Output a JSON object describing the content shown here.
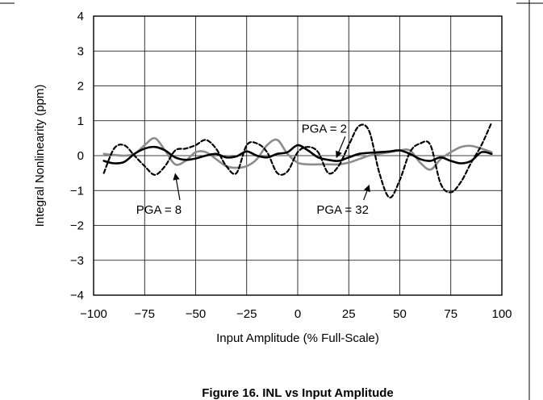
{
  "chart_data": {
    "type": "line",
    "title": "",
    "caption": "Figure 16. INL vs Input Amplitude",
    "xlabel": "Input Amplitude (% Full-Scale)",
    "ylabel": "Integral Nonlinearity (ppm)",
    "xlim": [
      -100,
      100
    ],
    "ylim": [
      -4,
      4
    ],
    "x_ticks": [
      -100,
      -75,
      -50,
      -25,
      0,
      25,
      50,
      75,
      100
    ],
    "y_ticks": [
      -4,
      -3,
      -2,
      -1,
      0,
      1,
      2,
      3,
      4
    ],
    "x_tick_labels": [
      "−100",
      "−75",
      "−50",
      "−25",
      "0",
      "25",
      "50",
      "75",
      "100"
    ],
    "y_tick_labels": [
      "−4",
      "−3",
      "−2",
      "−1",
      "0",
      "1",
      "2",
      "3",
      "4"
    ],
    "grid": true,
    "series": [
      {
        "name": "PGA = 2",
        "color": "#000000",
        "style": "solid",
        "x": [
          -95,
          -90,
          -85,
          -80,
          -75,
          -70,
          -65,
          -60,
          -55,
          -50,
          -45,
          -40,
          -35,
          -30,
          -25,
          -20,
          -15,
          -10,
          -5,
          0,
          5,
          10,
          15,
          20,
          25,
          30,
          35,
          40,
          45,
          50,
          55,
          60,
          65,
          70,
          75,
          80,
          85,
          90,
          95
        ],
        "y": [
          -0.15,
          -0.22,
          -0.18,
          0.05,
          0.2,
          0.25,
          0.15,
          -0.05,
          -0.12,
          -0.08,
          0.0,
          0.05,
          -0.05,
          -0.02,
          0.12,
          0.0,
          -0.05,
          0.05,
          0.1,
          0.3,
          0.15,
          -0.05,
          -0.12,
          -0.15,
          -0.05,
          0.05,
          0.08,
          0.1,
          0.12,
          0.15,
          0.05,
          -0.1,
          -0.15,
          -0.05,
          -0.15,
          -0.22,
          -0.15,
          0.1,
          0.05
        ]
      },
      {
        "name": "PGA = 8",
        "color": "#8c8c8c",
        "style": "solid",
        "x": [
          -95,
          -90,
          -85,
          -80,
          -75,
          -70,
          -65,
          -60,
          -55,
          -50,
          -45,
          -40,
          -35,
          -30,
          -25,
          -20,
          -15,
          -10,
          -5,
          0,
          5,
          10,
          15,
          20,
          25,
          30,
          35,
          40,
          45,
          50,
          55,
          60,
          65,
          70,
          75,
          80,
          85,
          90,
          95
        ],
        "y": [
          0.05,
          0.02,
          0.0,
          0.05,
          0.3,
          0.5,
          0.15,
          -0.25,
          -0.15,
          0.1,
          0.1,
          -0.1,
          -0.3,
          -0.35,
          -0.3,
          -0.1,
          0.3,
          0.45,
          0.05,
          -0.2,
          -0.25,
          -0.25,
          -0.25,
          -0.25,
          -0.2,
          -0.1,
          0.0,
          0.05,
          0.1,
          0.15,
          0.15,
          -0.2,
          -0.4,
          -0.1,
          0.1,
          0.25,
          0.28,
          0.2,
          0.1
        ]
      },
      {
        "name": "PGA = 32",
        "color": "#000000",
        "style": "dashed",
        "x": [
          -95,
          -90,
          -85,
          -80,
          -75,
          -70,
          -65,
          -60,
          -55,
          -50,
          -45,
          -40,
          -35,
          -30,
          -25,
          -20,
          -15,
          -10,
          -5,
          0,
          5,
          10,
          15,
          20,
          25,
          30,
          35,
          40,
          45,
          50,
          55,
          60,
          65,
          70,
          75,
          80,
          85,
          90,
          95
        ],
        "y": [
          -0.5,
          0.2,
          0.3,
          0.0,
          -0.3,
          -0.55,
          -0.3,
          0.15,
          0.2,
          0.3,
          0.45,
          0.2,
          -0.3,
          -0.5,
          0.3,
          0.35,
          0.1,
          -0.5,
          -0.45,
          0.1,
          0.25,
          0.1,
          -0.5,
          -0.3,
          0.3,
          0.85,
          0.7,
          -0.5,
          -1.2,
          -0.7,
          0.1,
          0.35,
          0.3,
          -0.8,
          -1.05,
          -0.75,
          -0.2,
          0.3,
          0.95
        ]
      }
    ],
    "annotations": [
      {
        "text": "PGA = 2",
        "series": "PGA = 2",
        "label_at": [
          13,
          0.78
        ],
        "arrow_to": [
          19,
          -0.05
        ]
      },
      {
        "text": "PGA = 8",
        "series": "PGA = 8",
        "label_at": [
          -68,
          -1.55
        ],
        "arrow_to": [
          -60,
          -0.52
        ]
      },
      {
        "text": "PGA = 32",
        "series": "PGA = 32",
        "label_at": [
          22,
          -1.55
        ],
        "arrow_to": [
          35,
          -0.85
        ]
      }
    ]
  }
}
